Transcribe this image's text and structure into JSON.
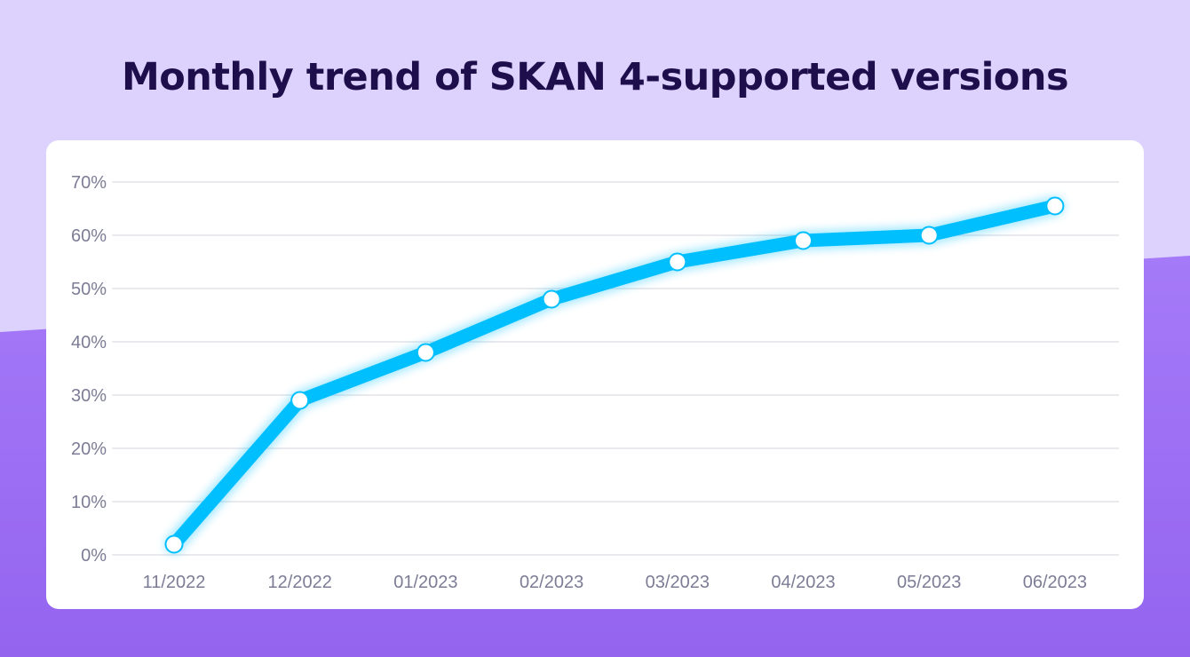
{
  "title": "Monthly trend of SKAN 4-supported versions",
  "colors": {
    "background_top": "#ddd1fd",
    "background_bottom": "#9a6ff3",
    "title": "#1e0e4c",
    "card": "#ffffff",
    "line": "#00bfff",
    "marker_fill": "#ffffff",
    "grid": "#e2e2e8",
    "tick_label": "#7c7c96"
  },
  "chart_data": {
    "type": "line",
    "title": "Monthly trend of SKAN 4-supported versions",
    "xlabel": "",
    "ylabel": "",
    "categories": [
      "11/2022",
      "12/2022",
      "01/2023",
      "02/2023",
      "03/2023",
      "04/2023",
      "05/2023",
      "06/2023"
    ],
    "series": [
      {
        "values": [
          2,
          29,
          38,
          48,
          55,
          59,
          60,
          65.5
        ]
      }
    ],
    "ylim": [
      0,
      70
    ],
    "y_ticks": [
      0,
      10,
      20,
      30,
      40,
      50,
      60,
      70
    ],
    "y_tick_labels": [
      "0%",
      "10%",
      "20%",
      "30%",
      "40%",
      "50%",
      "60%",
      "70%"
    ],
    "grid": true,
    "markers": true,
    "legend": "none"
  }
}
